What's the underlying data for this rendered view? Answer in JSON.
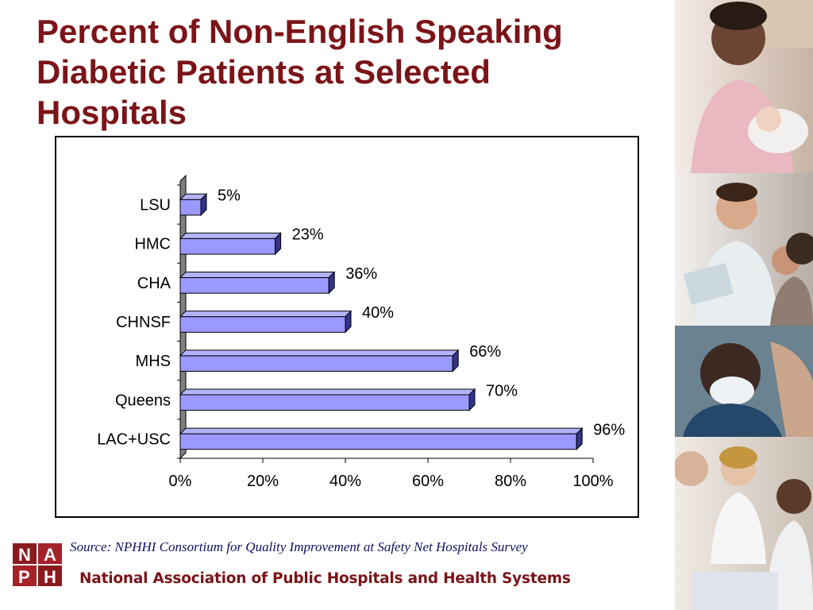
{
  "slide": {
    "title_lines": [
      "Percent of Non-English Speaking",
      "Diabetic Patients at Selected",
      "Hospitals"
    ],
    "source": "Source: NPHHI Consortium for Quality Improvement at Safety Net Hospitals Survey",
    "organization": "National Association of Public Hospitals and Health Systems",
    "logo_text": "NAPH",
    "title_color": "#7b1418",
    "bar_color": "#9999ff"
  },
  "chart_data": {
    "type": "bar",
    "orientation": "horizontal",
    "categories": [
      "LSU",
      "HMC",
      "CHA",
      "CHNSF",
      "MHS",
      "Queens",
      "LAC+USC"
    ],
    "values": [
      5,
      23,
      36,
      40,
      66,
      70,
      96
    ],
    "data_labels": [
      "5%",
      "23%",
      "36%",
      "40%",
      "66%",
      "70%",
      "96%"
    ],
    "xlim": [
      0,
      100
    ],
    "x_ticks": [
      0,
      20,
      40,
      60,
      80,
      100
    ],
    "x_tick_labels": [
      "0%",
      "20%",
      "40%",
      "60%",
      "80%",
      "100%"
    ],
    "grid": false,
    "legend": "none",
    "style": "3d"
  }
}
